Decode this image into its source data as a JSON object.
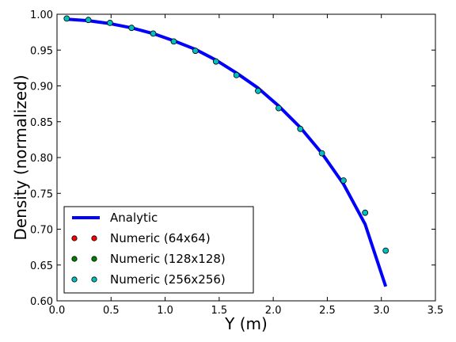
{
  "chart_data": {
    "type": "line",
    "xlabel": "Y (m)",
    "ylabel": "Density (normalized)",
    "xlim": [
      0.0,
      3.5
    ],
    "ylim": [
      0.6,
      1.0
    ],
    "xticks": [
      0.0,
      0.5,
      1.0,
      1.5,
      2.0,
      2.5,
      3.0,
      3.5
    ],
    "xtick_labels": [
      "0.0",
      "0.5",
      "1.0",
      "1.5",
      "2.0",
      "2.5",
      "3.0",
      "3.5"
    ],
    "yticks": [
      0.6,
      0.65,
      0.7,
      0.75,
      0.8,
      0.85,
      0.9,
      0.95,
      1.0
    ],
    "ytick_labels": [
      "0.60",
      "0.65",
      "0.70",
      "0.75",
      "0.80",
      "0.85",
      "0.90",
      "0.95",
      "1.00"
    ],
    "grid": false,
    "legend_position": "bottom-left",
    "series": [
      {
        "name": "Analytic",
        "kind": "line",
        "color": "#0000ff",
        "x": [
          0.09,
          0.29,
          0.49,
          0.69,
          0.89,
          1.08,
          1.28,
          1.47,
          1.66,
          1.86,
          2.05,
          2.25,
          2.45,
          2.65,
          2.85,
          3.04
        ],
        "y": [
          0.993,
          0.991,
          0.987,
          0.981,
          0.973,
          0.963,
          0.951,
          0.936,
          0.918,
          0.897,
          0.872,
          0.842,
          0.806,
          0.763,
          0.707,
          0.62
        ]
      },
      {
        "name": "Numeric (64x64)",
        "kind": "scatter",
        "color": "#ff0000",
        "x": [],
        "y": []
      },
      {
        "name": "Numeric (128x128)",
        "kind": "scatter",
        "color": "#008000",
        "x": [],
        "y": []
      },
      {
        "name": "Numeric (256x256)",
        "kind": "scatter",
        "color": "#00bfbf",
        "x": [
          0.09,
          0.29,
          0.49,
          0.69,
          0.89,
          1.08,
          1.28,
          1.47,
          1.66,
          1.86,
          2.05,
          2.25,
          2.45,
          2.65,
          2.85,
          3.04
        ],
        "y": [
          0.994,
          0.992,
          0.988,
          0.981,
          0.973,
          0.962,
          0.949,
          0.934,
          0.915,
          0.893,
          0.869,
          0.84,
          0.806,
          0.768,
          0.723,
          0.67
        ]
      }
    ]
  }
}
